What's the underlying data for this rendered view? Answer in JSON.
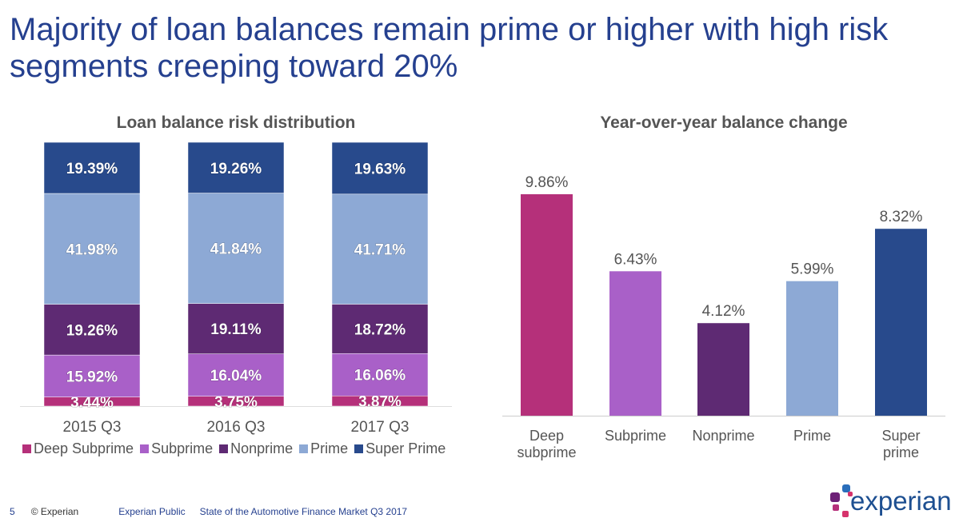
{
  "title": "Majority of loan balances remain prime or higher with high risk segments creeping toward 20%",
  "chart_data": [
    {
      "type": "bar",
      "stacked": true,
      "title": "Loan balance risk distribution",
      "categories": [
        "2015 Q3",
        "2016 Q3",
        "2017 Q3"
      ],
      "series": [
        {
          "name": "Deep Subprime",
          "color": "#B5307A",
          "values": [
            3.44,
            3.75,
            3.87
          ],
          "labels": [
            "3.44%",
            "3.75%",
            "3.87%"
          ]
        },
        {
          "name": "Subprime",
          "color": "#A960C8",
          "values": [
            15.92,
            16.04,
            16.06
          ],
          "labels": [
            "15.92%",
            "16.04%",
            "16.06%"
          ]
        },
        {
          "name": "Nonprime",
          "color": "#5E2A73",
          "values": [
            19.26,
            19.11,
            18.72
          ],
          "labels": [
            "19.26%",
            "19.11%",
            "18.72%"
          ]
        },
        {
          "name": "Prime",
          "color": "#8DA9D5",
          "values": [
            41.98,
            41.84,
            41.71
          ],
          "labels": [
            "41.98%",
            "41.84%",
            "41.71%"
          ]
        },
        {
          "name": "Super Prime",
          "color": "#284A8C",
          "values": [
            19.39,
            19.26,
            19.63
          ],
          "labels": [
            "19.39%",
            "19.26%",
            "19.63%"
          ]
        }
      ],
      "legend": "bottom",
      "grid": false
    },
    {
      "type": "bar",
      "title": "Year-over-year balance change",
      "categories": [
        "Deep subprime",
        "Subprime",
        "Nonprime",
        "Prime",
        "Super prime"
      ],
      "values": [
        9.86,
        6.43,
        4.12,
        5.99,
        8.32
      ],
      "labels": [
        "9.86%",
        "6.43%",
        "4.12%",
        "5.99%",
        "8.32%"
      ],
      "colors": [
        "#B5307A",
        "#A960C8",
        "#5E2A73",
        "#8DA9D5",
        "#284A8C"
      ],
      "grid": false
    }
  ],
  "footer": {
    "page": "5",
    "copyright": "© Experian",
    "classification": "Experian Public",
    "report": "State of the Automotive Finance Market Q3 2017"
  },
  "logo": {
    "text": "experian"
  }
}
